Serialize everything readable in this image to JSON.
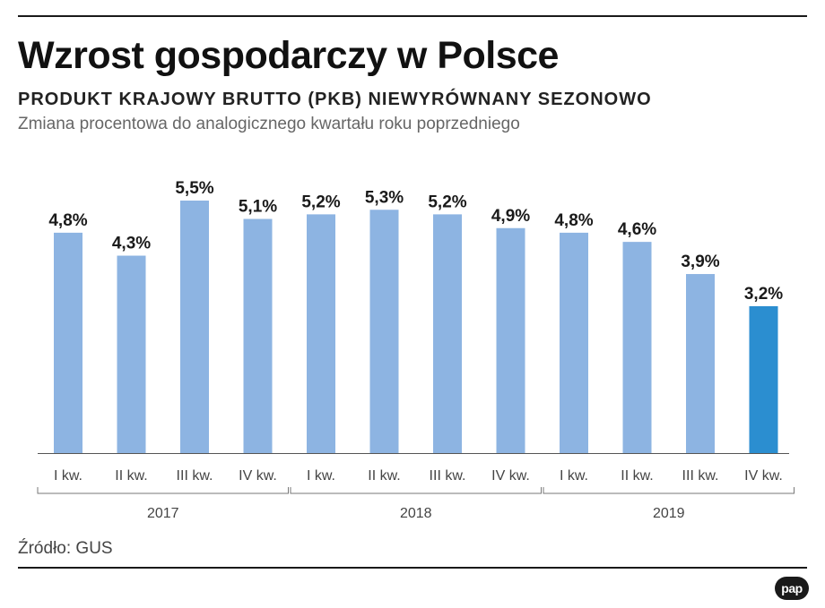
{
  "header": {
    "title": "Wzrost gospodarczy w Polsce",
    "subtitle": "PRODUKT KRAJOWY BRUTTO (PKB) NIEWYRÓWNANY SEZONOWO",
    "caption": "Zmiana procentowa do analogicznego kwartału roku poprzedniego"
  },
  "footer": {
    "source": "Źródło: GUS",
    "logo_text": "pap"
  },
  "colors": {
    "bar": "#8db4e2",
    "bar_highlight": "#2b8ed0",
    "text": "#1a1a1a",
    "axis": "#555555"
  },
  "chart_data": {
    "type": "bar",
    "categories": [
      "I kw.",
      "II kw.",
      "III kw.",
      "IV kw.",
      "I kw.",
      "II kw.",
      "III kw.",
      "IV kw.",
      "I kw.",
      "II kw.",
      "III kw.",
      "IV kw."
    ],
    "values": [
      4.8,
      4.3,
      5.5,
      5.1,
      5.2,
      5.3,
      5.2,
      4.9,
      4.8,
      4.6,
      3.9,
      3.2
    ],
    "value_labels": [
      "4,8%",
      "4,3%",
      "5,5%",
      "5,1%",
      "5,2%",
      "5,3%",
      "5,2%",
      "4,9%",
      "4,8%",
      "4,6%",
      "3,9%",
      "3,2%"
    ],
    "groups": [
      {
        "label": "2017",
        "categories": [
          0,
          3
        ]
      },
      {
        "label": "2018",
        "categories": [
          4,
          7
        ]
      },
      {
        "label": "2019",
        "categories": [
          8,
          11
        ]
      }
    ],
    "highlight_index": 11,
    "ylim": [
      0,
      5.5
    ],
    "grid": false,
    "xlabel": "",
    "ylabel": ""
  }
}
